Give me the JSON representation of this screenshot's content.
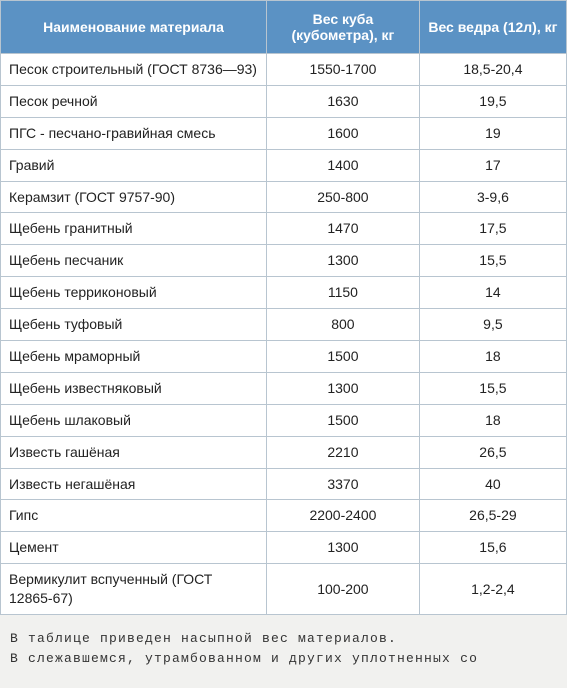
{
  "table": {
    "type": "table",
    "header_bg": "#5b92c4",
    "header_text_color": "#ffffff",
    "row_bg": "#ffffff",
    "border_color": "#b8c5d0",
    "cell_text_color": "#222222",
    "header_fontsize": 14,
    "cell_fontsize": 14,
    "column_widths_pct": [
      47,
      27,
      26
    ],
    "columns": [
      "Наименование материала",
      "Вес куба (кубометра), кг",
      "Вес ведра (12л), кг"
    ],
    "rows": [
      [
        "Песок строительный (ГОСТ 8736—93)",
        "1550-1700",
        "18,5-20,4"
      ],
      [
        "Песок речной",
        "1630",
        "19,5"
      ],
      [
        "ПГС - песчано-гравийная смесь",
        "1600",
        "19"
      ],
      [
        "Гравий",
        "1400",
        "17"
      ],
      [
        "Керамзит (ГОСТ 9757-90)",
        "250-800",
        "3-9,6"
      ],
      [
        "Щебень гранитный",
        "1470",
        "17,5"
      ],
      [
        "Щебень песчаник",
        "1300",
        "15,5"
      ],
      [
        "Щебень терриконовый",
        "1150",
        "14"
      ],
      [
        "Щебень туфовый",
        "800",
        "9,5"
      ],
      [
        "Щебень мраморный",
        "1500",
        "18"
      ],
      [
        "Щебень известняковый",
        "1300",
        "15,5"
      ],
      [
        "Щебень шлаковый",
        "1500",
        "18"
      ],
      [
        "Известь гашёная",
        "2210",
        "26,5"
      ],
      [
        "Известь негашёная",
        "3370",
        "40"
      ],
      [
        "Гипс",
        "2200-2400",
        "26,5-29"
      ],
      [
        "Цемент",
        "1300",
        "15,6"
      ],
      [
        "Вермикулит вспученный (ГОСТ 12865-67)",
        "100-200",
        "1,2-2,4"
      ]
    ]
  },
  "footer": {
    "bg": "#f1f1ef",
    "font_family": "Courier New",
    "fontsize": 13,
    "text_color": "#333333",
    "letter_spacing": 1.2,
    "line1": "В таблице приведен насыпной вес материалов.",
    "line2": "В слежавшемся, утрамбованном и других уплотненных со"
  }
}
